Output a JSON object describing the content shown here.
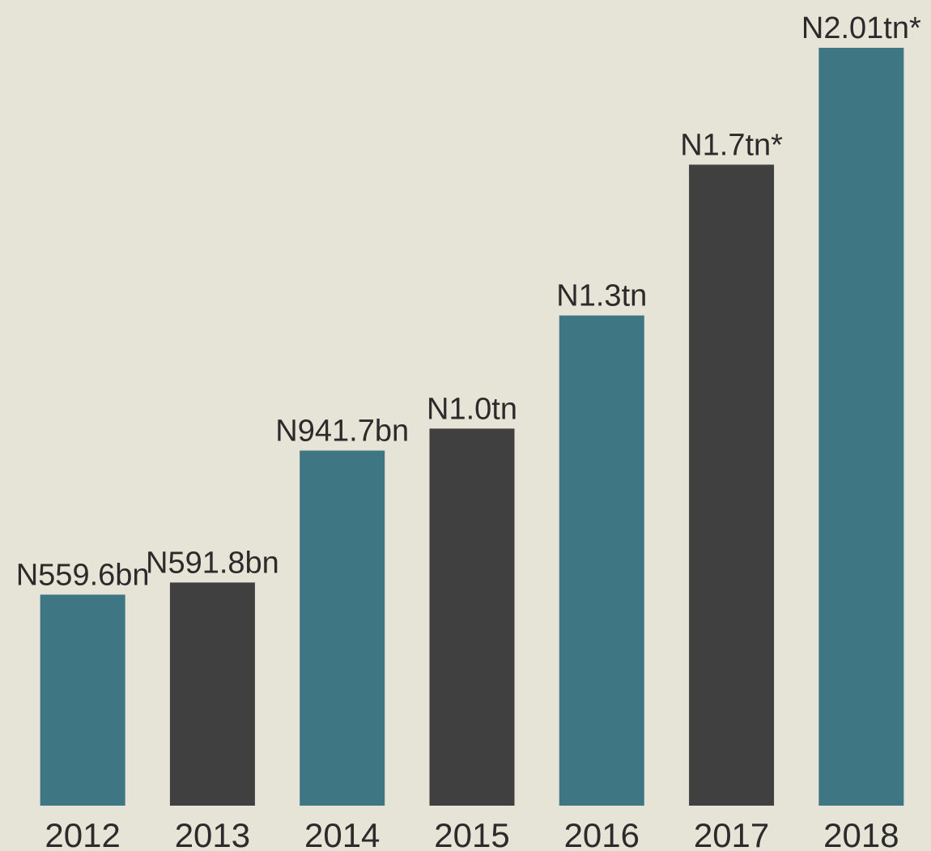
{
  "chart_data": {
    "type": "bar",
    "categories": [
      "2012",
      "2013",
      "2014",
      "2015",
      "2016",
      "2017",
      "2018"
    ],
    "values": [
      559.6,
      591.8,
      941.7,
      1000,
      1300,
      1700,
      2010
    ],
    "value_labels": [
      "N559.6bn",
      "N591.8bn",
      "N941.7bn",
      "N1.0tn",
      "N1.3tn",
      "N1.7tn*",
      "N2.01tn*"
    ],
    "colors": [
      "#3f7683",
      "#404040",
      "#3f7683",
      "#404040",
      "#3f7683",
      "#404040",
      "#3f7683"
    ]
  }
}
